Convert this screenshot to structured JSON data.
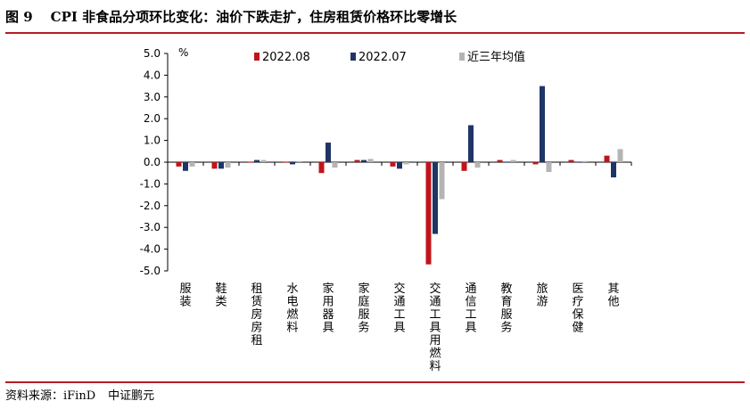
{
  "header": {
    "fig_label": "图 9",
    "title": "CPI 非食品分项环比变化：油价下跌走扩，住房租赁价格环比零增长"
  },
  "footer": {
    "source": "资料来源：iFinD",
    "brand": "中证鹏元"
  },
  "colors": {
    "rule": "#b11d23",
    "series_2022_08": "#c0141c",
    "series_2022_07": "#1f3566",
    "series_avg": "#b4b4b4"
  },
  "chart_data": {
    "type": "bar",
    "title": "CPI 非食品分项环比变化：油价下跌走扩，住房租赁价格环比零增长",
    "ylabel": "%",
    "ylim": [
      -5.0,
      5.0
    ],
    "yticks": [
      "5.0",
      "4.0",
      "3.0",
      "2.0",
      "1.0",
      "0.0",
      "-1.0",
      "-2.0",
      "-3.0",
      "-4.0",
      "-5.0"
    ],
    "legend_position": "top",
    "categories": [
      "服装",
      "鞋类",
      "租赁房房租",
      "水电燃料",
      "家用器具",
      "家庭服务",
      "交通工具",
      "交通工具用燃料",
      "通信工具",
      "教育服务",
      "旅游",
      "医疗保健",
      "其他"
    ],
    "series": [
      {
        "name": "2022.08",
        "color": "#c0141c",
        "values": [
          -0.2,
          -0.3,
          0.0,
          0.0,
          -0.5,
          0.1,
          -0.2,
          -4.7,
          -0.4,
          0.1,
          -0.1,
          0.1,
          0.3
        ]
      },
      {
        "name": "2022.07",
        "color": "#1f3566",
        "values": [
          -0.4,
          -0.3,
          0.1,
          -0.1,
          0.9,
          0.1,
          -0.3,
          -3.3,
          1.7,
          0.0,
          3.5,
          0.0,
          -0.7
        ]
      },
      {
        "name": "近三年均值",
        "color": "#b4b4b4",
        "values": [
          -0.2,
          -0.25,
          0.1,
          0.05,
          -0.25,
          0.15,
          -0.1,
          -1.7,
          -0.25,
          0.1,
          -0.45,
          0.05,
          0.6
        ]
      }
    ]
  }
}
